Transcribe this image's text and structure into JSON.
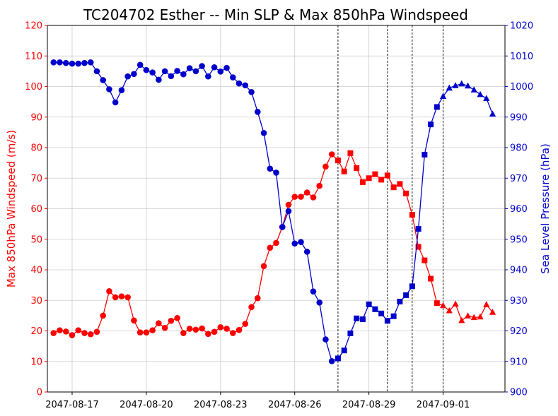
{
  "chart_data": {
    "type": "line",
    "title": "TC204702 Esther -- Min SLP & Max 850hPa Windspeed",
    "ylabel_left": "Max 850hPa Windspeed (m/s)",
    "ylabel_right": "Sea Level Pressure (hPa)",
    "xlabel": "",
    "grid": true,
    "colors": {
      "wind": "#ff0000",
      "pressure": "#0000cc",
      "vline": "#000000",
      "grid": "#cccccc"
    },
    "start_date": "2047-08-16",
    "xlim_days": [
      -0.25,
      18.25
    ],
    "ylim_left": [
      0,
      120
    ],
    "ylim_right": [
      900,
      1020
    ],
    "left_ticks": [
      0,
      10,
      20,
      30,
      40,
      50,
      60,
      70,
      80,
      90,
      100,
      110,
      120
    ],
    "right_ticks": [
      900,
      910,
      920,
      930,
      940,
      950,
      960,
      970,
      980,
      990,
      1000,
      1010,
      1020
    ],
    "x_ticks": [
      {
        "day": 0.75,
        "label": "2047-08-17"
      },
      {
        "day": 3.75,
        "label": "2047-08-20"
      },
      {
        "day": 6.75,
        "label": "2047-08-23"
      },
      {
        "day": 9.75,
        "label": "2047-08-26"
      },
      {
        "day": 12.75,
        "label": "2047-08-29"
      },
      {
        "day": 15.75,
        "label": "2047-09-01"
      }
    ],
    "vlines_days": [
      11.5,
      13.5,
      14.5,
      15.75
    ],
    "phase_markers": [
      {
        "from": 0,
        "to": 11.5,
        "marker": "circle"
      },
      {
        "from": 11.5,
        "to": 15.75,
        "marker": "square"
      },
      {
        "from": 15.75,
        "to": 99,
        "marker": "triangle"
      }
    ],
    "series": [
      {
        "id": "wind",
        "axis": "left",
        "values": [
          19.3,
          20.2,
          19.8,
          18.6,
          20.2,
          19.3,
          18.9,
          19.7,
          25,
          33,
          31,
          31.3,
          31,
          23.4,
          19.5,
          19.5,
          20.2,
          22.5,
          21,
          23.3,
          24.2,
          19.3,
          20.7,
          20.4,
          20.8,
          19,
          19.7,
          21.2,
          20.7,
          19.3,
          20.3,
          22.3,
          27.8,
          30.7,
          41.2,
          47.2,
          48.8,
          54,
          61.3,
          63.9,
          63.9,
          65.3,
          63.7,
          67.5,
          73.8,
          77.8,
          75.8,
          72.2,
          78.2,
          73.3,
          68.7,
          70,
          71.3,
          69.5,
          70.9,
          67,
          68.1,
          65,
          58,
          47.5,
          43.1,
          37.1,
          29.1,
          28.3,
          26.6,
          28.8,
          23.4,
          24.9,
          24.4,
          24.6,
          28.6,
          26.1
        ]
      },
      {
        "id": "pressure",
        "axis": "right",
        "values": [
          1007.9,
          1007.9,
          1007.7,
          1007.5,
          1007.5,
          1007.7,
          1007.9,
          1005,
          1002.1,
          999.1,
          994.8,
          998.8,
          1003.3,
          1004.1,
          1007.1,
          1005.4,
          1004.6,
          1002.2,
          1005,
          1003.4,
          1005.1,
          1004,
          1006,
          1005,
          1006.7,
          1003.3,
          1006.3,
          1004.9,
          1006.1,
          1003,
          1001,
          1000.4,
          998.2,
          991.7,
          984.8,
          973.1,
          971.8,
          954,
          959.2,
          948.6,
          949.1,
          945.9,
          932.9,
          929.3,
          917.2,
          910.1,
          911,
          913.6,
          919.2,
          924.1,
          923.8,
          928.7,
          927.1,
          925.7,
          923.3,
          924.8,
          929.6,
          931.7,
          934.6,
          953.4,
          977.7,
          987.6,
          993.3,
          996.8,
          999.5,
          1000.3,
          1000.9,
          1000.2,
          998.9,
          997.4,
          996.1,
          991
        ]
      }
    ]
  }
}
